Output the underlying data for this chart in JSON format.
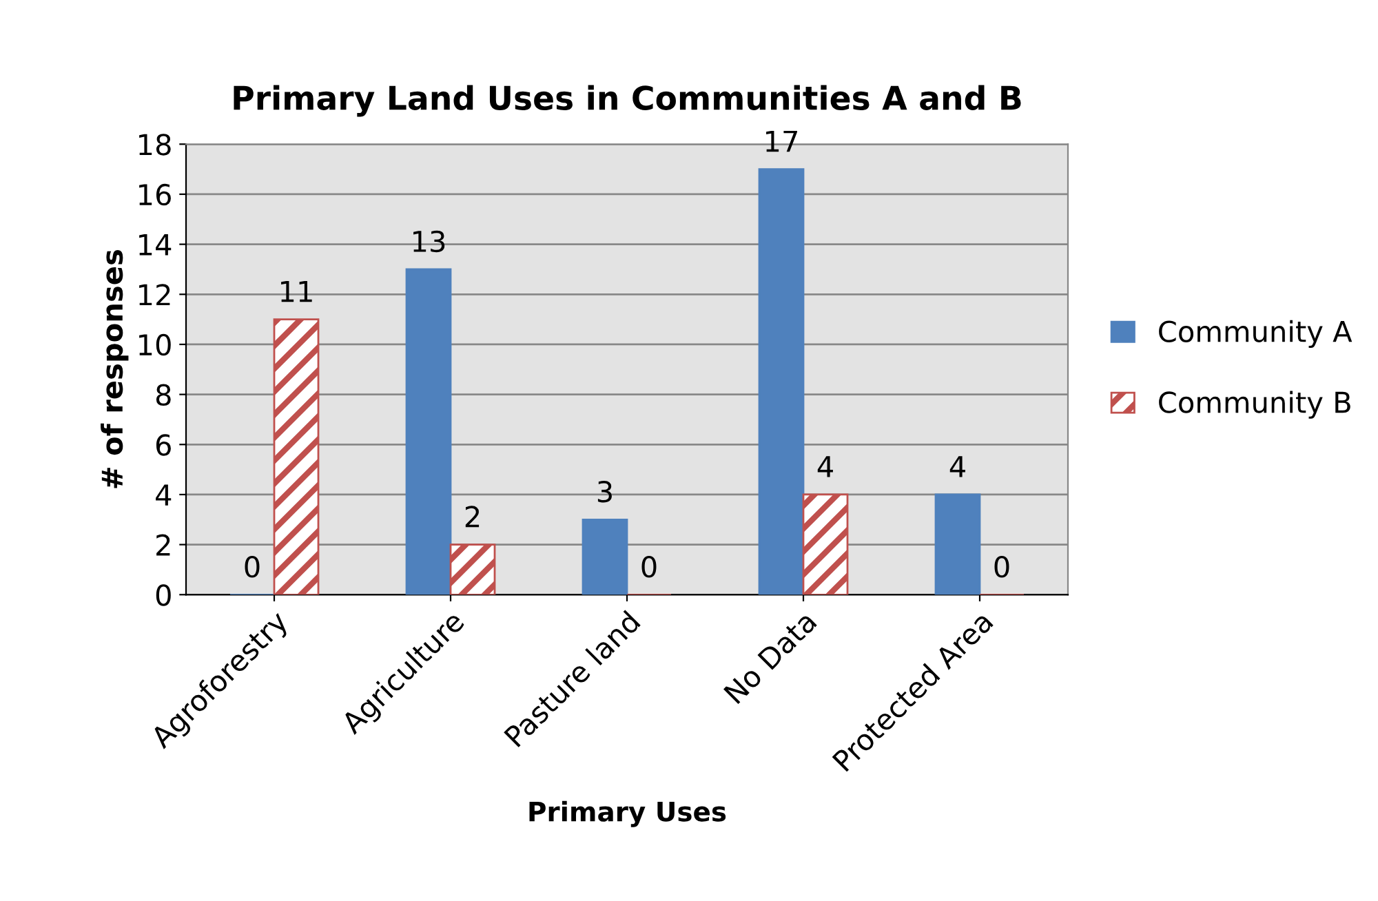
{
  "chart_data": {
    "type": "bar",
    "title": "Primary Land Uses in Communities A and B",
    "xlabel": "Primary Uses",
    "ylabel": "# of responses",
    "categories": [
      "Agroforestry",
      "Agriculture",
      "Pasture land",
      "No Data",
      "Protected Area"
    ],
    "series": [
      {
        "name": "Community A",
        "color": "#4f81bd",
        "values": [
          0,
          13,
          3,
          17,
          4
        ]
      },
      {
        "name": "Community B",
        "color": "#c0504d",
        "values": [
          11,
          2,
          0,
          4,
          0
        ]
      }
    ],
    "ylim": [
      0,
      18
    ],
    "yticks": [
      0,
      2,
      4,
      6,
      8,
      10,
      12,
      14,
      16,
      18
    ],
    "grid": "y",
    "legend": "right",
    "data_labels": true
  }
}
